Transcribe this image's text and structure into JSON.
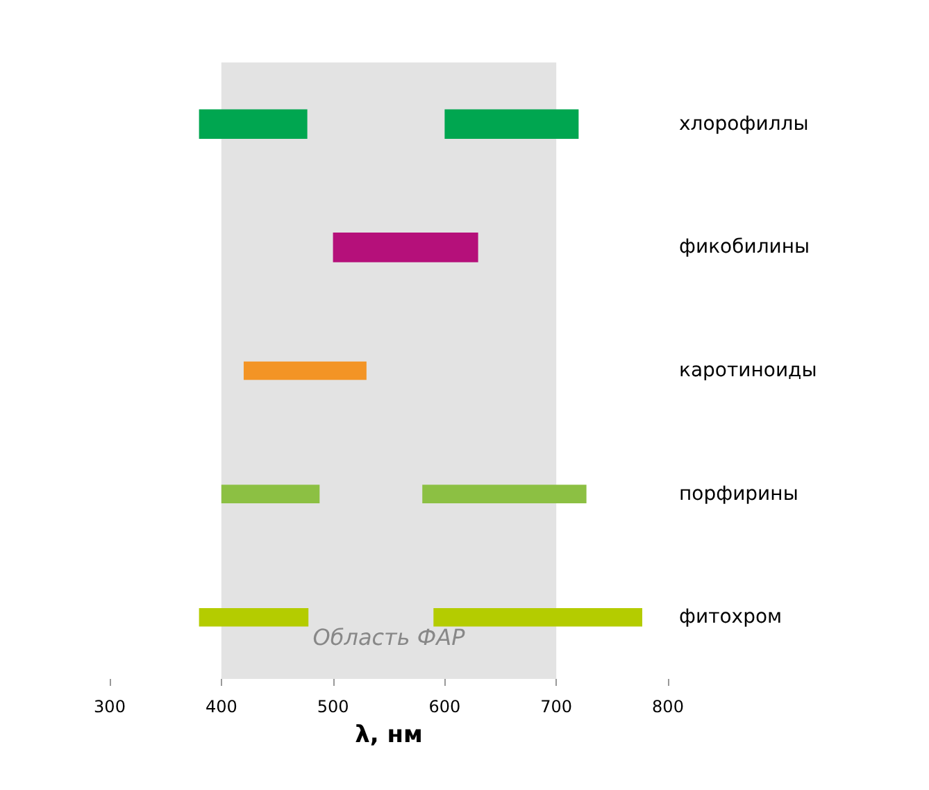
{
  "chart_data": {
    "type": "bar",
    "orientation": "horizontal",
    "xlabel": "λ, нм",
    "categories": [
      "хлорофиллы",
      "фикобилины",
      "каротиноиды",
      "порфирины",
      "фитохром"
    ],
    "series": [
      {
        "base": [
          380,
          500,
          420,
          400,
          380
        ],
        "values": [
          97,
          130,
          110,
          88,
          98
        ],
        "colors": [
          "#00a650",
          "#b5107a",
          "#f39425",
          "#8cc043",
          "#b4cc00"
        ]
      },
      {
        "base": [
          600,
          null,
          null,
          580,
          590
        ],
        "values": [
          120,
          null,
          null,
          147,
          187
        ],
        "colors": [
          "#00a650",
          null,
          null,
          "#8cc043",
          "#b4cc00"
        ]
      }
    ],
    "xlim": [
      300,
      800
    ],
    "xticks": [
      300,
      400,
      500,
      600,
      700,
      800
    ],
    "bands": [
      {
        "axis": "x",
        "from": 400,
        "to": 700,
        "label": "Область ФАР",
        "color": "#e3e3e3"
      }
    ],
    "grid": false
  }
}
